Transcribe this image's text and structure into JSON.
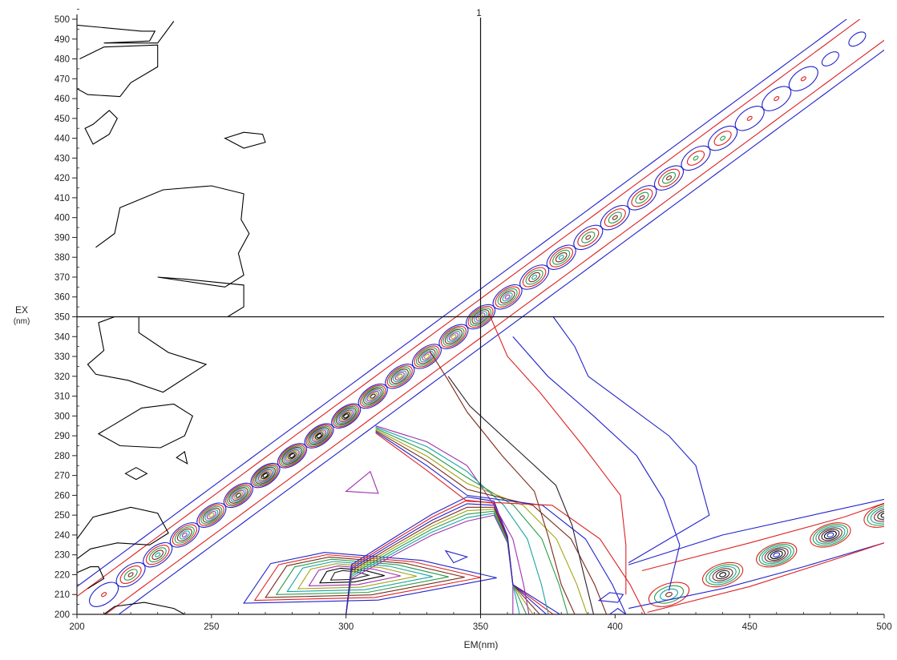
{
  "chart_data": {
    "type": "contour",
    "xlabel": "EM(nm)",
    "ylabel": "EX",
    "ylabel_unit": "(nm)",
    "xlim": [
      200,
      500
    ],
    "ylim": [
      200,
      500
    ],
    "x_ticks": [
      200,
      250,
      300,
      350,
      400,
      450,
      500
    ],
    "y_ticks": [
      200,
      210,
      220,
      230,
      240,
      250,
      260,
      270,
      280,
      290,
      300,
      310,
      320,
      330,
      340,
      350,
      360,
      370,
      380,
      390,
      400,
      410,
      420,
      430,
      440,
      450,
      460,
      470,
      480,
      490,
      500
    ],
    "cursor": {
      "em": 350,
      "ex": 350,
      "label": "1"
    },
    "contour_colors": [
      "#000000",
      "#2222cc",
      "#dd2222",
      "#2a9d4a",
      "#1aa3a3",
      "#a4a416",
      "#7a2b1a",
      "#a030b0",
      "#2a1f2a"
    ],
    "rayleigh_scatter_peaks": [
      {
        "em": 210,
        "ex": 210,
        "levels": 2
      },
      {
        "em": 220,
        "ex": 220,
        "levels": 4
      },
      {
        "em": 230,
        "ex": 230,
        "levels": 5
      },
      {
        "em": 240,
        "ex": 240,
        "levels": 6
      },
      {
        "em": 250,
        "ex": 250,
        "levels": 7
      },
      {
        "em": 260,
        "ex": 260,
        "levels": 8
      },
      {
        "em": 270,
        "ex": 270,
        "levels": 9
      },
      {
        "em": 280,
        "ex": 280,
        "levels": 9
      },
      {
        "em": 290,
        "ex": 290,
        "levels": 9
      },
      {
        "em": 300,
        "ex": 300,
        "levels": 9
      },
      {
        "em": 310,
        "ex": 310,
        "levels": 8
      },
      {
        "em": 320,
        "ex": 320,
        "levels": 7
      },
      {
        "em": 330,
        "ex": 330,
        "levels": 7
      },
      {
        "em": 340,
        "ex": 340,
        "levels": 7
      },
      {
        "em": 350,
        "ex": 350,
        "levels": 7
      },
      {
        "em": 360,
        "ex": 360,
        "levels": 6
      },
      {
        "em": 370,
        "ex": 370,
        "levels": 5
      },
      {
        "em": 380,
        "ex": 380,
        "levels": 5
      },
      {
        "em": 390,
        "ex": 390,
        "levels": 4
      },
      {
        "em": 400,
        "ex": 400,
        "levels": 4
      },
      {
        "em": 410,
        "ex": 410,
        "levels": 4
      },
      {
        "em": 420,
        "ex": 420,
        "levels": 4
      },
      {
        "em": 430,
        "ex": 430,
        "levels": 3
      },
      {
        "em": 440,
        "ex": 440,
        "levels": 3
      },
      {
        "em": 450,
        "ex": 450,
        "levels": 2
      },
      {
        "em": 460,
        "ex": 460,
        "levels": 2
      },
      {
        "em": 470,
        "ex": 470,
        "levels": 2
      },
      {
        "em": 480,
        "ex": 480,
        "levels": 1
      },
      {
        "em": 490,
        "ex": 490,
        "levels": 1
      }
    ],
    "second_order_peaks": [
      {
        "em": 420,
        "ex": 210,
        "levels": 4
      },
      {
        "em": 440,
        "ex": 220,
        "levels": 6
      },
      {
        "em": 460,
        "ex": 230,
        "levels": 7
      },
      {
        "em": 480,
        "ex": 240,
        "levels": 7
      },
      {
        "em": 500,
        "ex": 250,
        "levels": 6
      }
    ],
    "fluorescence_peak": {
      "em": 300,
      "ex": 220,
      "levels": 9
    }
  }
}
